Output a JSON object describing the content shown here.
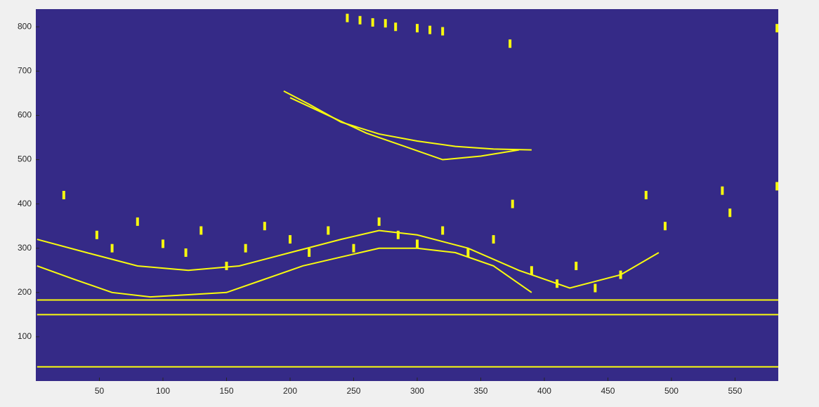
{
  "chart_data": {
    "type": "image",
    "xlim": [
      0,
      584
    ],
    "ylim": [
      0,
      840
    ],
    "xticks": [
      50,
      100,
      150,
      200,
      250,
      300,
      350,
      400,
      450,
      500,
      550
    ],
    "yticks": [
      100,
      200,
      300,
      400,
      500,
      600,
      700,
      800
    ],
    "background": "#352a87",
    "color": "#f9fb0e",
    "lines": [
      {
        "x": [
          1,
          584
        ],
        "y": [
          32,
          32
        ]
      },
      {
        "x": [
          1,
          584
        ],
        "y": [
          150,
          150
        ]
      },
      {
        "x": [
          1,
          584
        ],
        "y": [
          183,
          183
        ]
      },
      {
        "x": [
          195,
          215,
          240,
          270,
          300,
          330,
          360,
          390
        ],
        "y": [
          655,
          625,
          585,
          558,
          542,
          530,
          524,
          522
        ]
      },
      {
        "x": [
          200,
          230,
          260,
          290,
          320,
          350,
          380
        ],
        "y": [
          640,
          600,
          560,
          530,
          500,
          508,
          522
        ]
      },
      {
        "x": [
          1,
          30,
          60,
          90,
          120,
          150,
          180,
          210,
          240,
          270,
          300,
          330,
          360,
          390
        ],
        "y": [
          260,
          230,
          200,
          190,
          195,
          200,
          230,
          260,
          280,
          300,
          300,
          290,
          260,
          200
        ]
      },
      {
        "x": [
          1,
          40,
          80,
          120,
          160,
          200,
          240,
          270,
          300,
          340,
          380,
          420,
          460,
          490
        ],
        "y": [
          320,
          290,
          260,
          250,
          260,
          290,
          320,
          340,
          330,
          300,
          250,
          210,
          240,
          290
        ]
      }
    ],
    "points": {
      "x": [
        245,
        255,
        265,
        275,
        283,
        300,
        310,
        320,
        373,
        583,
        22,
        48,
        60,
        80,
        100,
        118,
        130,
        150,
        165,
        180,
        200,
        215,
        230,
        250,
        270,
        285,
        300,
        320,
        340,
        360,
        375,
        390,
        410,
        425,
        440,
        460,
        480,
        495,
        540,
        546,
        583
      ],
      "y": [
        820,
        815,
        810,
        808,
        800,
        797,
        793,
        790,
        762,
        797,
        420,
        330,
        300,
        360,
        310,
        290,
        340,
        260,
        300,
        350,
        320,
        290,
        340,
        300,
        360,
        330,
        310,
        340,
        290,
        320,
        400,
        250,
        220,
        260,
        210,
        240,
        420,
        350,
        430,
        380,
        440
      ]
    }
  }
}
